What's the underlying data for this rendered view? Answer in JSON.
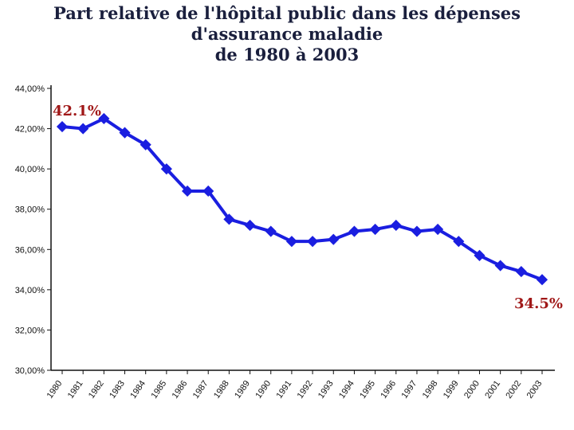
{
  "title_line1": "Part relative de l'hôpital public dans les dépenses d'assurance maladie",
  "title_line2": "de 1980 à 2003",
  "chart_data": {
    "type": "line",
    "title": "Part relative de l'hôpital public dans les dépenses d'assurance maladie de 1980 à 2003",
    "xlabel": "",
    "ylabel": "",
    "categories": [
      "1980",
      "1981",
      "1982",
      "1983",
      "1984",
      "1985",
      "1986",
      "1987",
      "1988",
      "1989",
      "1990",
      "1991",
      "1992",
      "1993",
      "1994",
      "1995",
      "1996",
      "1997",
      "1998",
      "1999",
      "2000",
      "2001",
      "2002",
      "2003"
    ],
    "values": [
      42.1,
      42.0,
      42.5,
      41.8,
      41.2,
      40.0,
      38.9,
      38.9,
      37.5,
      37.2,
      36.9,
      36.4,
      36.4,
      36.5,
      36.9,
      37.0,
      37.2,
      36.9,
      37.0,
      36.4,
      35.7,
      35.2,
      34.9,
      34.5
    ],
    "ylim": [
      30,
      44
    ],
    "yticks": [
      "44,00%",
      "42,00%",
      "40,00%",
      "38,00%",
      "36,00%",
      "34,00%",
      "32,00%",
      "30,00%"
    ],
    "series_color": "#1a1ee0",
    "annotations": [
      {
        "text": "42.1%",
        "category": "1980"
      },
      {
        "text": "34.5%",
        "category": "2003"
      }
    ],
    "grid": false
  }
}
